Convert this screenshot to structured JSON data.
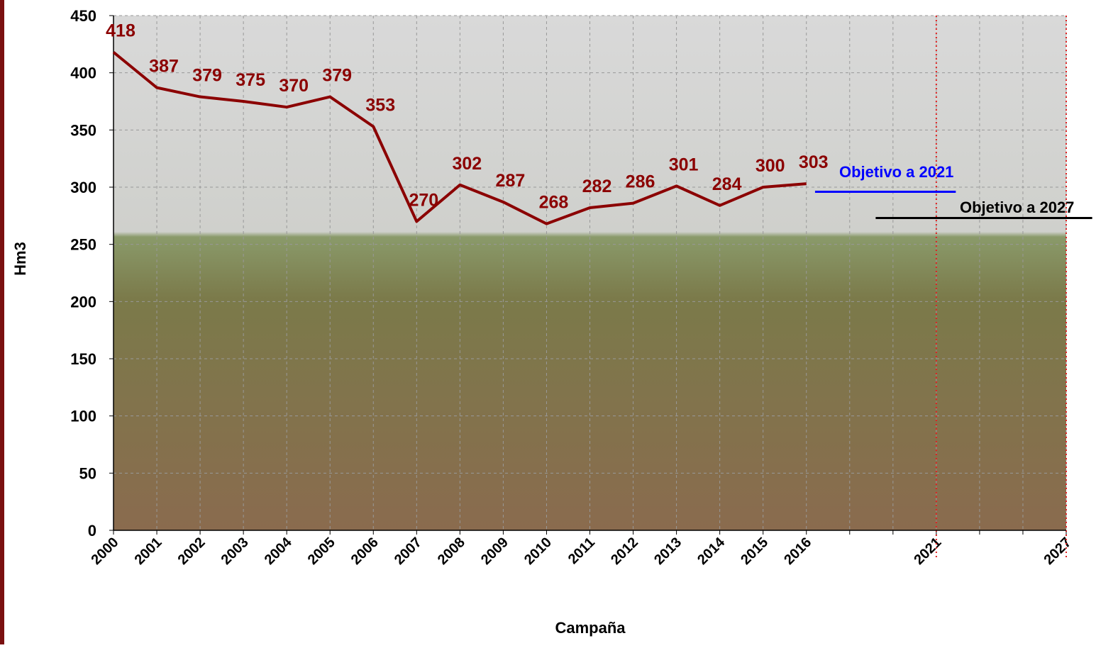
{
  "chart_data": {
    "type": "line",
    "y_label": "Hm3",
    "x_label": "Campaña",
    "categories": [
      "2000",
      "2001",
      "2002",
      "2003",
      "2004",
      "2005",
      "2006",
      "2007",
      "2008",
      "2009",
      "2010",
      "2011",
      "2012",
      "2013",
      "2014",
      "2015",
      "2016",
      null,
      null,
      "2021",
      null,
      null,
      "2027"
    ],
    "series": [
      {
        "name": "Hm3",
        "color": "#8b0000",
        "values": [
          418,
          387,
          379,
          375,
          370,
          379,
          353,
          270,
          302,
          287,
          268,
          282,
          286,
          301,
          284,
          300,
          303,
          null,
          null,
          null,
          null,
          null,
          null
        ]
      }
    ],
    "ylim": [
      0,
      450
    ],
    "yticks": [
      0,
      50,
      100,
      150,
      200,
      250,
      300,
      350,
      400,
      450
    ],
    "grid": true,
    "targets": [
      {
        "label": "Objetivo a 2021",
        "value": 296,
        "color": "#0000ff"
      },
      {
        "label": "Objetivo a 2027",
        "value": 273,
        "color": "#000000"
      }
    ]
  }
}
